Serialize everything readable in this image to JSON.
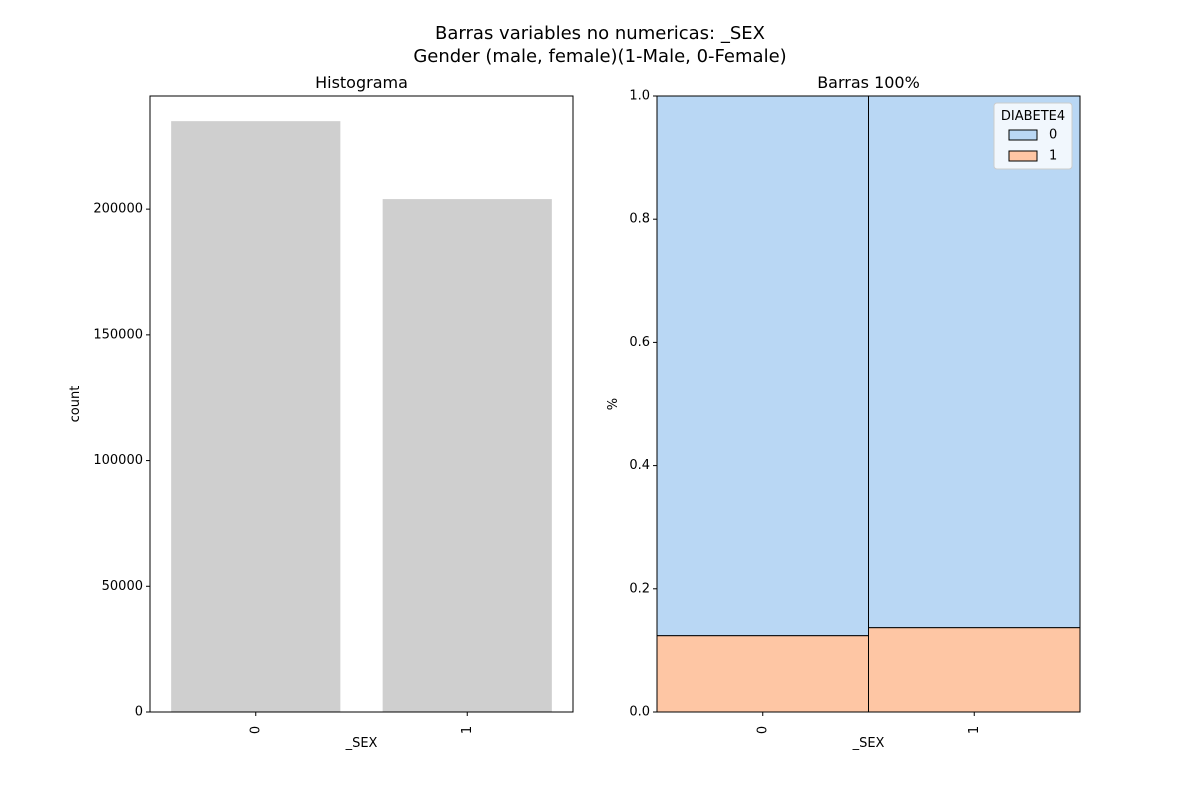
{
  "figure": {
    "title_line1": "Barras variables no numericas: _SEX",
    "title_line2": "Gender (male, female)(1-Male, 0-Female)"
  },
  "chart_data": [
    {
      "type": "bar",
      "title": "Histograma",
      "xlabel": "_SEX",
      "ylabel": "count",
      "categories": [
        "0",
        "1"
      ],
      "values": [
        235000,
        204000
      ],
      "ylim": [
        0,
        245000
      ],
      "yticks": [
        0,
        50000,
        100000,
        150000,
        200000
      ],
      "ytick_labels": [
        "0",
        "50000",
        "100000",
        "150000",
        "200000"
      ],
      "grid": false,
      "bar_color": "#cfcfcf"
    },
    {
      "type": "bar",
      "stacked": true,
      "title": "Barras 100%",
      "xlabel": "_SEX",
      "ylabel": "%",
      "categories": [
        "0",
        "1"
      ],
      "series": [
        {
          "name": "0",
          "values": [
            0.876,
            0.863
          ],
          "color": "#b9d7f4"
        },
        {
          "name": "1",
          "values": [
            0.124,
            0.137
          ],
          "color": "#fec6a4"
        }
      ],
      "ylim": [
        0,
        1.0
      ],
      "yticks": [
        0.0,
        0.2,
        0.4,
        0.6,
        0.8,
        1.0
      ],
      "ytick_labels": [
        "0.0",
        "0.2",
        "0.4",
        "0.6",
        "0.8",
        "1.0"
      ],
      "legend_title": "DIABETE4",
      "legend_position": "top-right",
      "grid": false
    }
  ]
}
